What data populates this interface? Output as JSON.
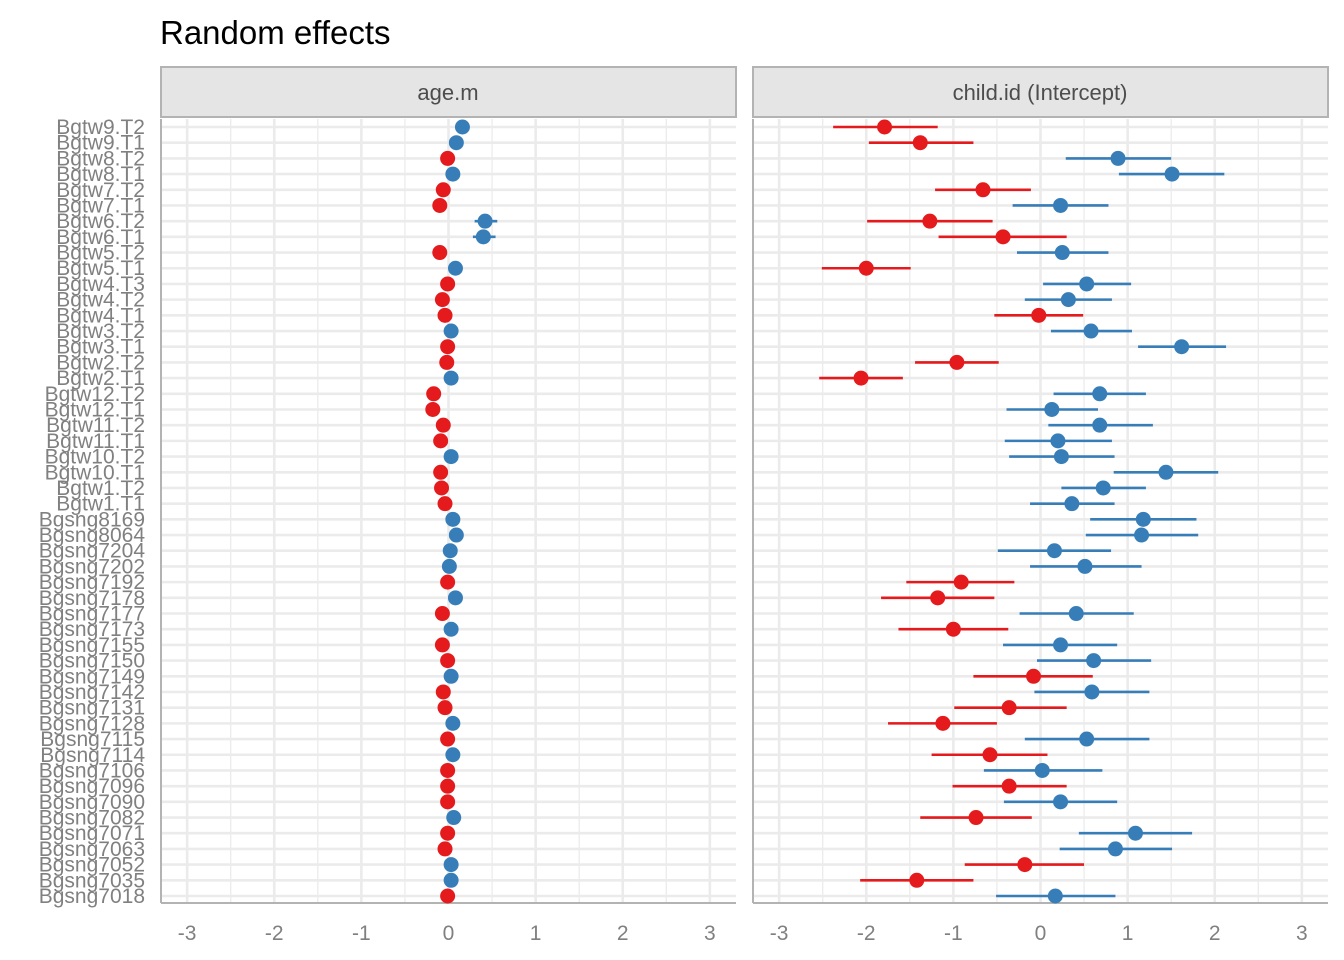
{
  "chart_data": {
    "type": "scatter",
    "subtype": "forest-plot (point estimate with interval)",
    "title": "Random effects",
    "xlabel": "",
    "ylabel": "",
    "xlim": [
      -3.3,
      3.3
    ],
    "x_ticks": [
      -3,
      -2,
      -1,
      0,
      1,
      2,
      3
    ],
    "x_tick_labels": [
      "-3",
      "-2",
      "-1",
      "0",
      "1",
      "2",
      "3"
    ],
    "grid": true,
    "legend": "none",
    "colors": {
      "positive": "#377eb8",
      "negative": "#e41a1c"
    },
    "categories": [
      "Bgtw9.T2",
      "Bgtw9.T1",
      "Bgtw8.T2",
      "Bgtw8.T1",
      "Bgtw7.T2",
      "Bgtw7.T1",
      "Bgtw6.T2",
      "Bgtw6.T1",
      "Bgtw5.T2",
      "Bgtw5.T1",
      "Bgtw4.T3",
      "Bgtw4.T2",
      "Bgtw4.T1",
      "Bgtw3.T2",
      "Bgtw3.T1",
      "Bgtw2.T2",
      "Bgtw2.T1",
      "Bgtw12.T2",
      "Bgtw12.T1",
      "Bgtw11.T2",
      "Bgtw11.T1",
      "Bgtw10.T2",
      "Bgtw10.T1",
      "Bgtw1.T2",
      "Bgtw1.T1",
      "Bgsng8169",
      "Bgsng8064",
      "Bgsng7204",
      "Bgsng7202",
      "Bgsng7192",
      "Bgsng7178",
      "Bgsng7177",
      "Bgsng7173",
      "Bgsng7155",
      "Bgsng7150",
      "Bgsng7149",
      "Bgsng7142",
      "Bgsng7131",
      "Bgsng7128",
      "Bgsng7115",
      "Bgsng7114",
      "Bgsng7106",
      "Bgsng7096",
      "Bgsng7090",
      "Bgsng7082",
      "Bgsng7071",
      "Bgsng7063",
      "Bgsng7052",
      "Bgsng7035",
      "Bgsng7018"
    ],
    "panels": [
      {
        "strip": "age.m",
        "estimates": [
          0.16,
          0.09,
          -0.01,
          0.05,
          -0.06,
          -0.1,
          0.42,
          0.4,
          -0.1,
          0.08,
          -0.01,
          -0.07,
          -0.04,
          0.03,
          -0.01,
          -0.02,
          0.03,
          -0.17,
          -0.18,
          -0.06,
          -0.09,
          0.03,
          -0.09,
          -0.08,
          -0.04,
          0.05,
          0.09,
          0.02,
          0.01,
          -0.01,
          0.08,
          -0.07,
          0.03,
          -0.07,
          -0.01,
          0.03,
          -0.06,
          -0.04,
          0.05,
          -0.01,
          0.05,
          -0.01,
          -0.01,
          -0.01,
          0.06,
          -0.01,
          -0.04,
          0.03,
          0.03,
          -0.01
        ],
        "lower": [
          0.13,
          0.06,
          -0.03,
          0.02,
          -0.09,
          -0.13,
          0.3,
          0.28,
          -0.13,
          0.05,
          -0.04,
          -0.1,
          -0.07,
          0.0,
          -0.04,
          -0.05,
          0.0,
          -0.2,
          -0.21,
          -0.09,
          -0.12,
          0.0,
          -0.12,
          -0.11,
          -0.07,
          0.02,
          0.06,
          -0.01,
          -0.02,
          -0.04,
          0.05,
          -0.1,
          0.0,
          -0.1,
          -0.04,
          0.0,
          -0.09,
          -0.07,
          0.02,
          -0.04,
          0.02,
          -0.04,
          -0.04,
          -0.04,
          0.03,
          -0.04,
          -0.07,
          0.0,
          0.0,
          -0.04
        ],
        "upper": [
          0.19,
          0.12,
          0.02,
          0.08,
          -0.03,
          -0.07,
          0.56,
          0.54,
          -0.07,
          0.11,
          0.02,
          -0.04,
          -0.01,
          0.06,
          0.02,
          0.01,
          0.06,
          -0.14,
          -0.15,
          -0.03,
          -0.06,
          0.06,
          -0.06,
          -0.05,
          -0.01,
          0.08,
          0.12,
          0.05,
          0.04,
          0.02,
          0.11,
          -0.04,
          0.06,
          -0.04,
          0.02,
          0.06,
          -0.03,
          -0.01,
          0.08,
          0.02,
          0.08,
          0.02,
          0.02,
          0.02,
          0.09,
          0.02,
          -0.01,
          0.06,
          0.06,
          0.02
        ]
      },
      {
        "strip": "child.id (Intercept)",
        "estimates": [
          -1.79,
          -1.38,
          0.89,
          1.51,
          -0.66,
          0.23,
          -1.27,
          -0.43,
          0.25,
          -2.0,
          0.53,
          0.32,
          -0.02,
          0.58,
          1.62,
          -0.96,
          -2.06,
          0.68,
          0.13,
          0.68,
          0.2,
          0.24,
          1.44,
          0.72,
          0.36,
          1.18,
          1.16,
          0.16,
          0.51,
          -0.91,
          -1.18,
          0.41,
          -1.0,
          0.23,
          0.61,
          -0.08,
          0.59,
          -0.36,
          -1.12,
          0.53,
          -0.58,
          0.02,
          -0.36,
          0.23,
          -0.74,
          1.09,
          0.86,
          -0.18,
          -1.42,
          0.17
        ],
        "lower": [
          -2.38,
          -1.97,
          0.29,
          0.9,
          -1.21,
          -0.32,
          -1.99,
          -1.17,
          -0.27,
          -2.51,
          0.03,
          -0.18,
          -0.53,
          0.12,
          1.12,
          -1.44,
          -2.54,
          0.15,
          -0.39,
          0.09,
          -0.41,
          -0.36,
          0.84,
          0.24,
          -0.12,
          0.57,
          0.52,
          -0.49,
          -0.12,
          -1.54,
          -1.83,
          -0.24,
          -1.63,
          -0.43,
          -0.04,
          -0.77,
          -0.07,
          -0.99,
          -1.75,
          -0.18,
          -1.25,
          -0.65,
          -1.01,
          -0.42,
          -1.38,
          0.44,
          0.22,
          -0.87,
          -2.07,
          -0.51
        ],
        "upper": [
          -1.18,
          -0.77,
          1.5,
          2.11,
          -0.11,
          0.78,
          -0.55,
          0.3,
          0.78,
          -1.49,
          1.04,
          0.82,
          0.49,
          1.05,
          2.13,
          -0.48,
          -1.58,
          1.21,
          0.66,
          1.29,
          0.82,
          0.85,
          2.04,
          1.21,
          0.85,
          1.79,
          1.81,
          0.81,
          1.16,
          -0.3,
          -0.53,
          1.07,
          -0.37,
          0.88,
          1.27,
          0.6,
          1.25,
          0.3,
          -0.5,
          1.25,
          0.08,
          0.71,
          0.3,
          0.88,
          -0.1,
          1.74,
          1.51,
          0.5,
          -0.77,
          0.86
        ]
      }
    ]
  }
}
